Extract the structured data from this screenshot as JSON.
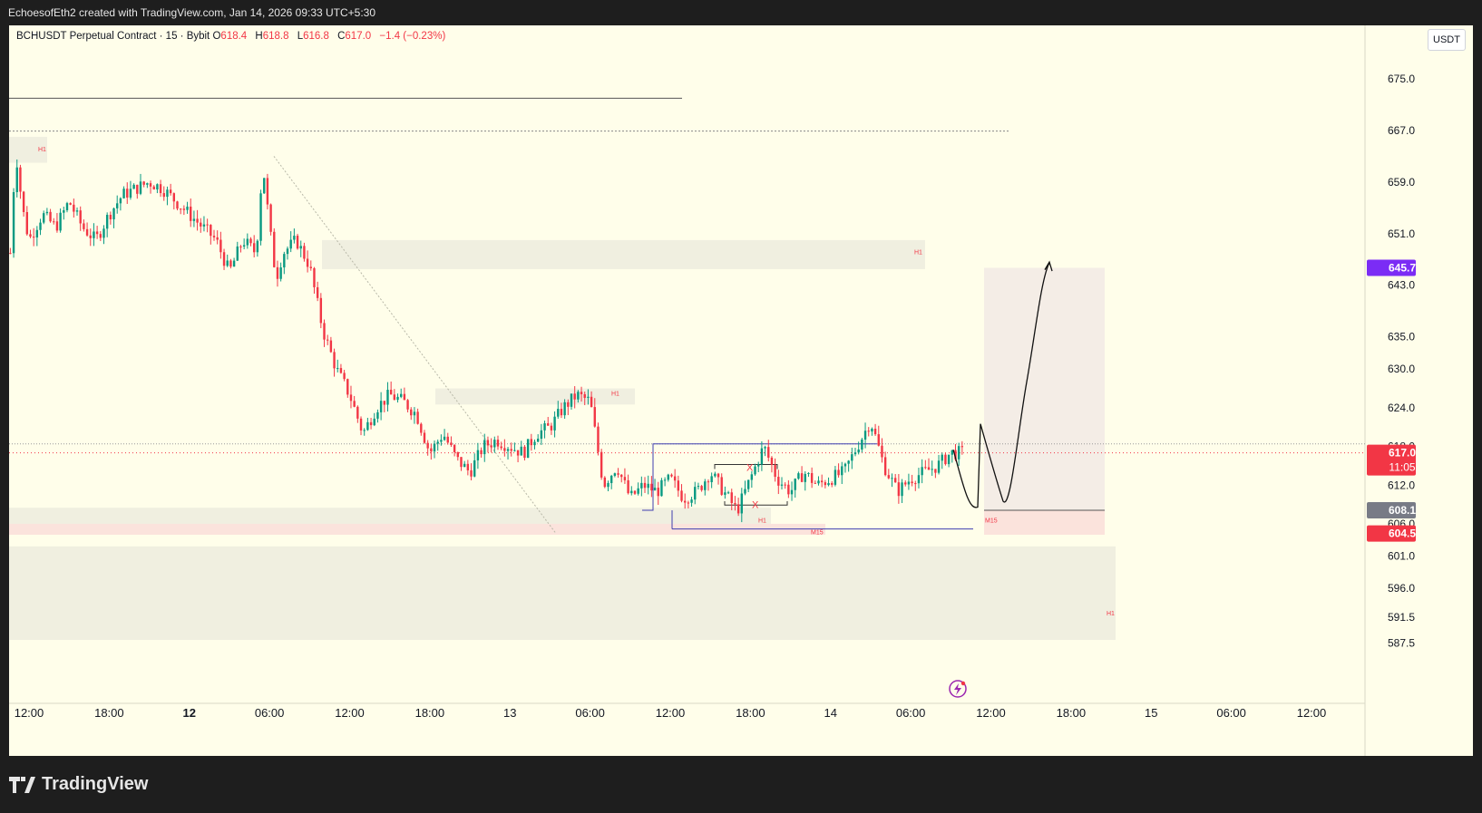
{
  "header": {
    "attribution": "EchoesofEth2 created with TradingView.com, Jan 14, 2026 09:33 UTC+5:30"
  },
  "legend": {
    "symbol": "BCHUSDT Perpetual Contract · 15 · Bybit",
    "o_label": "O",
    "o_value": "618.4",
    "h_label": "H",
    "h_value": "618.8",
    "l_label": "L",
    "l_value": "616.8",
    "c_label": "C",
    "c_value": "617.0",
    "change": "−1.4 (−0.23%)"
  },
  "currency_button": "USDT",
  "footer": {
    "brand": "TradingView"
  },
  "colors": {
    "background": "#fffeea",
    "up": "#089981",
    "down": "#f23645",
    "zone": "#f0efe0",
    "zone_pink": "#fbe3dc",
    "range_line": "#3f3fb0",
    "price_badge": "#f23645",
    "target_badge": "#7b2cf5",
    "level_badge": "#787b86"
  },
  "chart_data": {
    "type": "candlestick",
    "symbol": "BCHUSDT",
    "timeframe": "15",
    "ylim": [
      586,
      680
    ],
    "y_ticks": [
      "675.0",
      "667.0",
      "659.0",
      "651.0",
      "643.0",
      "635.0",
      "630.0",
      "624.0",
      "618.0",
      "612.0",
      "606.0",
      "601.0",
      "596.0",
      "591.5",
      "587.5"
    ],
    "x_tick_labels": [
      "12:00",
      "18:00",
      "12",
      "06:00",
      "12:00",
      "18:00",
      "13",
      "06:00",
      "12:00",
      "18:00",
      "14",
      "06:00",
      "12:00",
      "18:00",
      "15",
      "06:00",
      "12:00"
    ],
    "x_tick_bold": [
      false,
      false,
      true,
      false,
      false,
      false,
      false,
      false,
      false,
      false,
      false,
      false,
      false,
      false,
      false,
      false,
      false
    ],
    "x_tick_hours": [
      12,
      18,
      24,
      30,
      36,
      42,
      48,
      54,
      60,
      66,
      72,
      78,
      84,
      90,
      96,
      102,
      108
    ],
    "x_range_hours": [
      10.6,
      114.1
    ],
    "price_path_hours": [
      10.6,
      11,
      11.5,
      12,
      13,
      14,
      15,
      16,
      17,
      18,
      19,
      20,
      21,
      22,
      23,
      24,
      25,
      26,
      27,
      28,
      29,
      29.5,
      30,
      30.5,
      31,
      32,
      33,
      34,
      35,
      36,
      37,
      38,
      39,
      40,
      41,
      42,
      43,
      44,
      45,
      46,
      47,
      48,
      49,
      50,
      51,
      52,
      53,
      54,
      55,
      56,
      57,
      58,
      59,
      60,
      61,
      62,
      63,
      64,
      65,
      66,
      67,
      68,
      69,
      70,
      71,
      72,
      73,
      74,
      75,
      76,
      77,
      78,
      79,
      80,
      81,
      82
    ],
    "price_path_closes": [
      648,
      664,
      655,
      650,
      654,
      652,
      656,
      652,
      650,
      654,
      657,
      658,
      659,
      658,
      656,
      654,
      652,
      650,
      645,
      650,
      648,
      662,
      652,
      644,
      648,
      650,
      646,
      636,
      630,
      626,
      620,
      624,
      626,
      625,
      623,
      617,
      620,
      616,
      614,
      618,
      619,
      618,
      617,
      620,
      621,
      624,
      626,
      625,
      612,
      615,
      610,
      612,
      611,
      613,
      610,
      611,
      614,
      611,
      608,
      613,
      618,
      613,
      611,
      614,
      612,
      613,
      614,
      618,
      622,
      615,
      611,
      613,
      614,
      615,
      617,
      617
    ],
    "current_price": "617.0",
    "countdown": "11:05",
    "target_price": "645.7",
    "entry_level": "608.1",
    "stop_level": "604.5",
    "zone_labels": [
      "H1",
      "H1",
      "H1",
      "H1",
      "M15",
      "M15",
      "H1"
    ],
    "range_markers": [
      "X",
      "X"
    ],
    "drawn_projection": "dip toward 608 then rally to target 645.7"
  }
}
